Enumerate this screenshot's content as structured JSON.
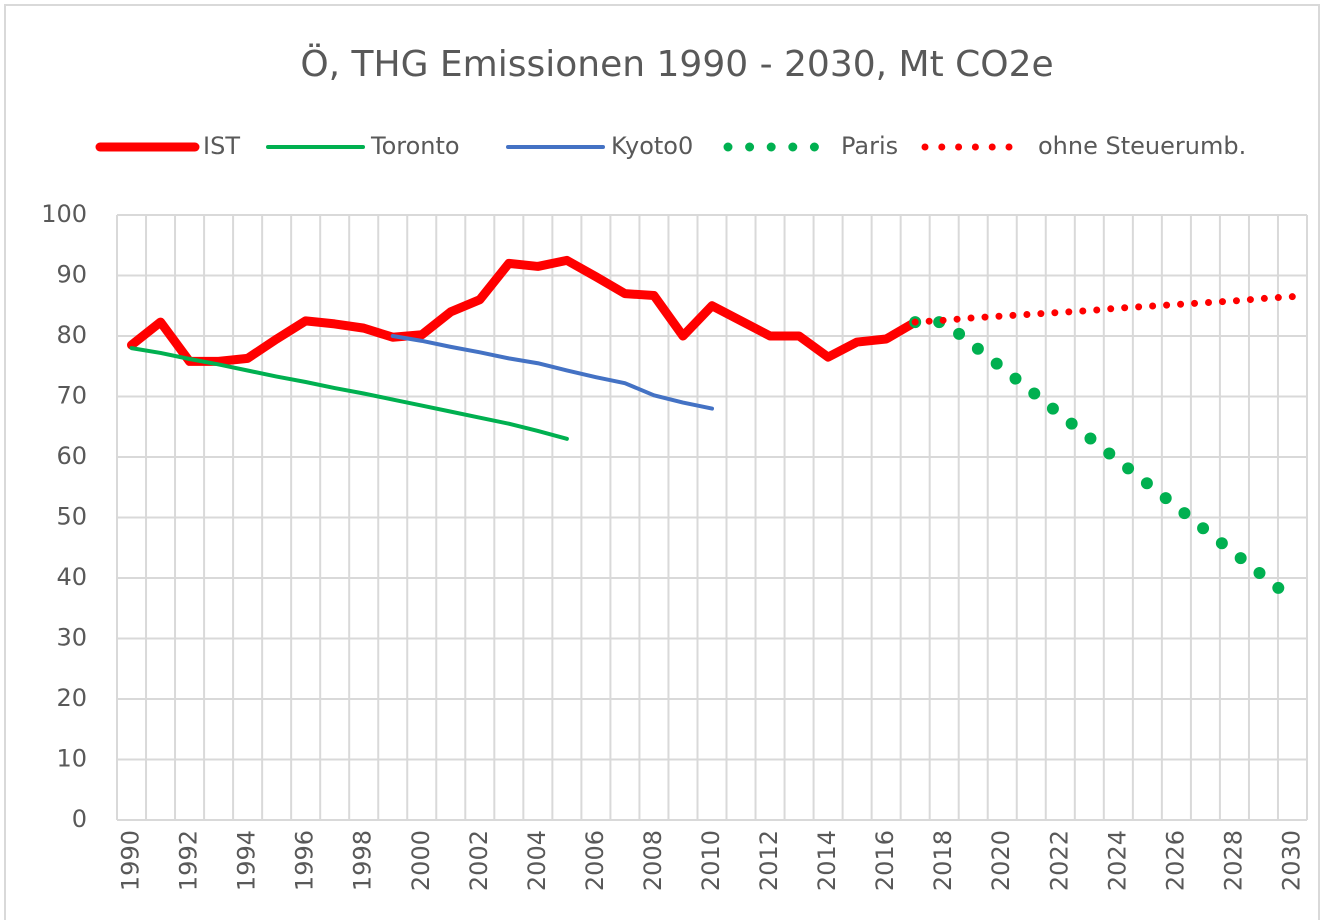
{
  "chart_data": {
    "type": "line",
    "title": "Ö, THG Emissionen 1990 - 2030, Mt CO2e",
    "categories": [
      "1990",
      null,
      "1992",
      null,
      "1994",
      null,
      "1996",
      null,
      "1998",
      null,
      "2000",
      null,
      "2002",
      null,
      "2004",
      null,
      "2006",
      null,
      "2008",
      null,
      "2010",
      null,
      "2012",
      null,
      "2014",
      null,
      "2016",
      null,
      "2018",
      null,
      "2020",
      null,
      "2022",
      null,
      "2024",
      null,
      "2026",
      null,
      "2028",
      null,
      "2030"
    ],
    "series": [
      {
        "name": "IST",
        "color": "#ff0000",
        "style": "solid",
        "width": 9,
        "values": [
          78.5,
          82.3,
          75.8,
          75.8,
          76.3,
          79.5,
          82.5,
          82.0,
          81.3,
          79.8,
          80.2,
          84.0,
          86.0,
          92.0,
          91.5,
          92.5,
          89.8,
          87.0,
          86.7,
          80.0,
          85.0,
          82.5,
          80.0,
          80.0,
          76.5,
          79.0,
          79.5,
          82.3,
          null,
          null,
          null,
          null,
          null,
          null,
          null,
          null,
          null,
          null,
          null,
          null,
          null
        ]
      },
      {
        "name": "Toronto",
        "color": "#00b050",
        "style": "solid",
        "width": 4,
        "values": [
          78.0,
          77.2,
          76.2,
          75.3,
          74.3,
          73.3,
          72.4,
          71.4,
          70.5,
          69.5,
          68.5,
          67.5,
          66.5,
          65.5,
          64.3,
          63.0,
          null,
          null,
          null,
          null,
          null,
          null,
          null,
          null,
          null,
          null,
          null,
          null,
          null,
          null,
          null,
          null,
          null,
          null,
          null,
          null,
          null,
          null,
          null,
          null,
          null
        ]
      },
      {
        "name": "Kyoto0",
        "color": "#4472c4",
        "style": "solid",
        "width": 4,
        "values": [
          null,
          null,
          null,
          null,
          null,
          null,
          null,
          null,
          null,
          80.0,
          79.2,
          78.2,
          77.3,
          76.3,
          75.5,
          74.3,
          73.2,
          72.2,
          70.2,
          69.0,
          68.0,
          null,
          null,
          null,
          null,
          null,
          null,
          null,
          null,
          null,
          null,
          null,
          null,
          null,
          null,
          null,
          null,
          null,
          null,
          null,
          null
        ]
      },
      {
        "name": "Paris",
        "color": "#00b050",
        "style": "dotted",
        "width": 12,
        "values": [
          null,
          null,
          null,
          null,
          null,
          null,
          null,
          null,
          null,
          null,
          null,
          null,
          null,
          null,
          null,
          null,
          null,
          null,
          null,
          null,
          null,
          null,
          null,
          null,
          null,
          null,
          null,
          82.3,
          82.3,
          78.5,
          74.7,
          70.9,
          67.0,
          63.2,
          59.4,
          55.6,
          51.8,
          47.9,
          44.1,
          40.3,
          36.5
        ]
      },
      {
        "name": "ohne Steuerumb.",
        "color": "#ff0000",
        "style": "dotted",
        "width": 7,
        "values": [
          null,
          null,
          null,
          null,
          null,
          null,
          null,
          null,
          null,
          null,
          null,
          null,
          null,
          null,
          null,
          null,
          null,
          null,
          null,
          null,
          null,
          null,
          null,
          null,
          null,
          null,
          null,
          82.3,
          82.6,
          83.0,
          83.3,
          83.6,
          83.9,
          84.2,
          84.6,
          84.9,
          85.2,
          85.5,
          85.8,
          86.2,
          86.5
        ]
      }
    ],
    "ylim": [
      0,
      100
    ],
    "yticks": [
      0,
      10,
      20,
      30,
      40,
      50,
      60,
      70,
      80,
      90,
      100
    ],
    "grid": true,
    "legend": "top"
  }
}
